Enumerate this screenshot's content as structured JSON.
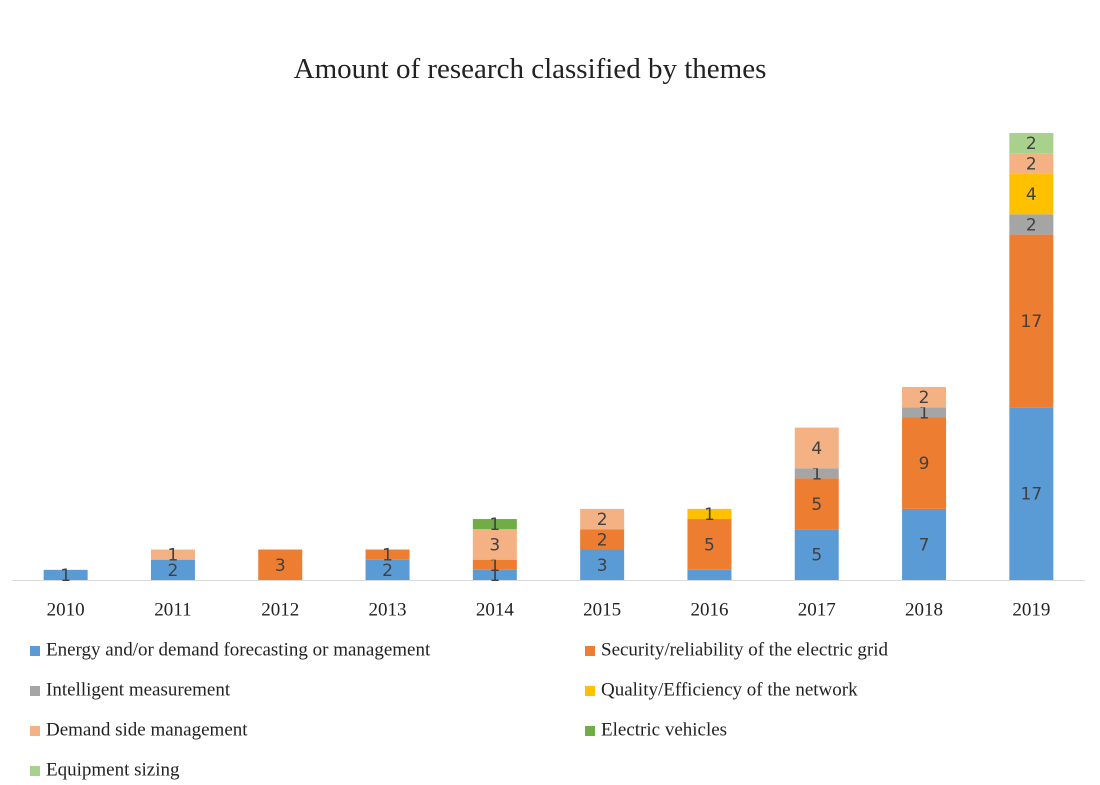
{
  "chart_data": {
    "type": "stacked_bar",
    "title": "Amount of research classified by themes",
    "categories": [
      "2010",
      "2011",
      "2012",
      "2013",
      "2014",
      "2015",
      "2016",
      "2017",
      "2018",
      "2019"
    ],
    "series": [
      {
        "name": "Energy and/or demand forecasting or management",
        "color": "#5b9bd5",
        "values": [
          1,
          2,
          null,
          2,
          1,
          3,
          1,
          5,
          7,
          17
        ],
        "value_labels": [
          "1",
          "2",
          null,
          "2",
          "1",
          "3",
          null,
          "5",
          "7",
          "17"
        ]
      },
      {
        "name": "Security/reliability of the electric grid",
        "color": "#ed7d31",
        "values": [
          null,
          null,
          3,
          1,
          1,
          2,
          5,
          5,
          9,
          17
        ]
      },
      {
        "name": "Intelligent measurement",
        "color": "#a5a5a5",
        "values": [
          null,
          null,
          null,
          null,
          null,
          null,
          null,
          1,
          1,
          2
        ]
      },
      {
        "name": "Quality/Efficiency of the network",
        "color": "#ffc000",
        "values": [
          null,
          null,
          null,
          null,
          null,
          null,
          1,
          null,
          null,
          4
        ]
      },
      {
        "name": "Demand side management",
        "color": "#f4b183",
        "values": [
          null,
          1,
          null,
          null,
          3,
          2,
          null,
          4,
          2,
          2
        ]
      },
      {
        "name": "Electric vehicles",
        "color": "#70ad47",
        "values": [
          null,
          null,
          null,
          null,
          1,
          null,
          null,
          null,
          null,
          null
        ]
      },
      {
        "name": "Equipment sizing",
        "color": "#a9d18e",
        "values": [
          null,
          null,
          null,
          null,
          null,
          null,
          null,
          null,
          null,
          2
        ]
      }
    ]
  }
}
